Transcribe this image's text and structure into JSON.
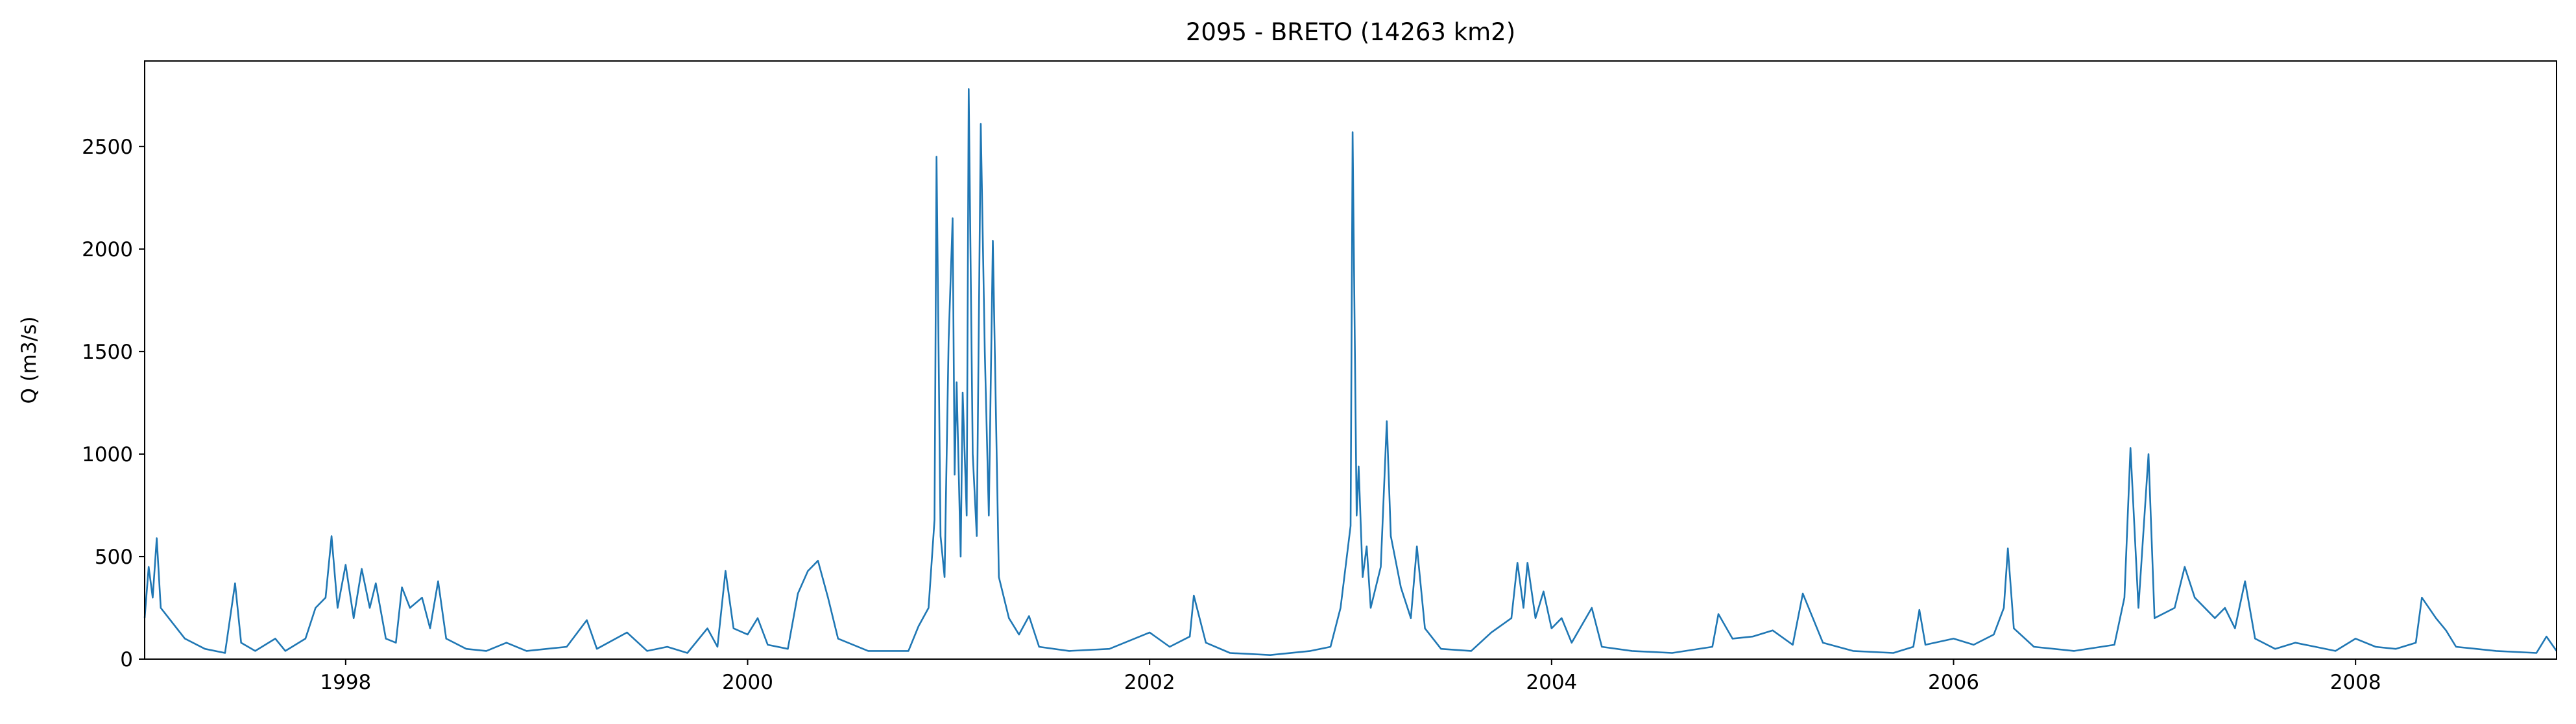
{
  "chart_data": {
    "type": "line",
    "title": "2095 - BRETO (14263 km2)",
    "ylabel": "Q (m3/s)",
    "x": [
      1997.0,
      1997.02,
      1997.04,
      1997.06,
      1997.08,
      1997.12,
      1997.2,
      1997.3,
      1997.4,
      1997.45,
      1997.48,
      1997.55,
      1997.65,
      1997.7,
      1997.8,
      1997.85,
      1997.9,
      1997.93,
      1997.96,
      1998.0,
      1998.04,
      1998.08,
      1998.12,
      1998.15,
      1998.2,
      1998.25,
      1998.28,
      1998.32,
      1998.38,
      1998.42,
      1998.46,
      1998.5,
      1998.6,
      1998.7,
      1998.8,
      1998.9,
      1999.0,
      1999.1,
      1999.2,
      1999.25,
      1999.4,
      1999.5,
      1999.6,
      1999.7,
      1999.8,
      1999.85,
      1999.89,
      1999.93,
      2000.0,
      2000.05,
      2000.1,
      2000.2,
      2000.25,
      2000.3,
      2000.35,
      2000.4,
      2000.45,
      2000.6,
      2000.8,
      2000.85,
      2000.9,
      2000.93,
      2000.94,
      2000.96,
      2000.98,
      2001.0,
      2001.02,
      2001.03,
      2001.04,
      2001.06,
      2001.07,
      2001.09,
      2001.1,
      2001.12,
      2001.14,
      2001.16,
      2001.18,
      2001.2,
      2001.22,
      2001.25,
      2001.3,
      2001.35,
      2001.4,
      2001.45,
      2001.6,
      2001.8,
      2002.0,
      2002.1,
      2002.2,
      2002.22,
      2002.28,
      2002.4,
      2002.6,
      2002.8,
      2002.9,
      2002.95,
      2003.0,
      2003.01,
      2003.03,
      2003.04,
      2003.06,
      2003.08,
      2003.1,
      2003.15,
      2003.18,
      2003.2,
      2003.25,
      2003.3,
      2003.33,
      2003.37,
      2003.45,
      2003.6,
      2003.7,
      2003.8,
      2003.83,
      2003.86,
      2003.88,
      2003.92,
      2003.96,
      2004.0,
      2004.05,
      2004.1,
      2004.2,
      2004.25,
      2004.4,
      2004.6,
      2004.8,
      2004.83,
      2004.9,
      2005.0,
      2005.1,
      2005.2,
      2005.25,
      2005.3,
      2005.35,
      2005.5,
      2005.7,
      2005.8,
      2005.83,
      2005.86,
      2006.0,
      2006.1,
      2006.2,
      2006.25,
      2006.27,
      2006.3,
      2006.4,
      2006.6,
      2006.8,
      2006.85,
      2006.88,
      2006.92,
      2006.97,
      2007.0,
      2007.1,
      2007.15,
      2007.2,
      2007.3,
      2007.35,
      2007.4,
      2007.45,
      2007.5,
      2007.6,
      2007.7,
      2007.8,
      2007.9,
      2008.0,
      2008.1,
      2008.2,
      2008.3,
      2008.33,
      2008.4,
      2008.45,
      2008.5,
      2008.7,
      2008.9,
      2008.95,
      2009.0
    ],
    "series": [
      {
        "color": "#1f77b4",
        "values": [
          200,
          450,
          300,
          590,
          250,
          200,
          100,
          50,
          30,
          370,
          80,
          40,
          100,
          40,
          100,
          250,
          300,
          600,
          250,
          460,
          200,
          440,
          250,
          370,
          100,
          80,
          350,
          250,
          300,
          150,
          380,
          100,
          50,
          40,
          80,
          40,
          50,
          60,
          190,
          50,
          130,
          40,
          60,
          30,
          150,
          60,
          430,
          150,
          120,
          200,
          70,
          50,
          320,
          430,
          480,
          300,
          100,
          40,
          40,
          160,
          250,
          680,
          2450,
          600,
          400,
          1550,
          2150,
          900,
          1350,
          500,
          1300,
          700,
          2780,
          1000,
          600,
          2610,
          1500,
          700,
          2040,
          400,
          200,
          120,
          210,
          60,
          40,
          50,
          130,
          60,
          110,
          310,
          80,
          30,
          20,
          40,
          60,
          250,
          650,
          2570,
          700,
          940,
          400,
          550,
          250,
          450,
          1160,
          600,
          350,
          200,
          550,
          150,
          50,
          40,
          130,
          200,
          470,
          250,
          470,
          200,
          330,
          150,
          200,
          80,
          250,
          60,
          40,
          30,
          60,
          220,
          100,
          110,
          140,
          70,
          320,
          200,
          80,
          40,
          30,
          60,
          240,
          70,
          100,
          70,
          120,
          250,
          540,
          150,
          60,
          40,
          70,
          300,
          1030,
          250,
          1000,
          200,
          250,
          450,
          300,
          200,
          250,
          150,
          380,
          100,
          50,
          80,
          60,
          40,
          100,
          60,
          50,
          80,
          300,
          200,
          140,
          60,
          40,
          30,
          110,
          40
        ]
      }
    ],
    "xlim": [
      1997.0,
      2009.0
    ],
    "xticks": [
      1998,
      2000,
      2002,
      2004,
      2006,
      2008
    ],
    "ylim": [
      0,
      2917
    ],
    "yticks": [
      0,
      500,
      1000,
      1500,
      2000,
      2500
    ]
  }
}
